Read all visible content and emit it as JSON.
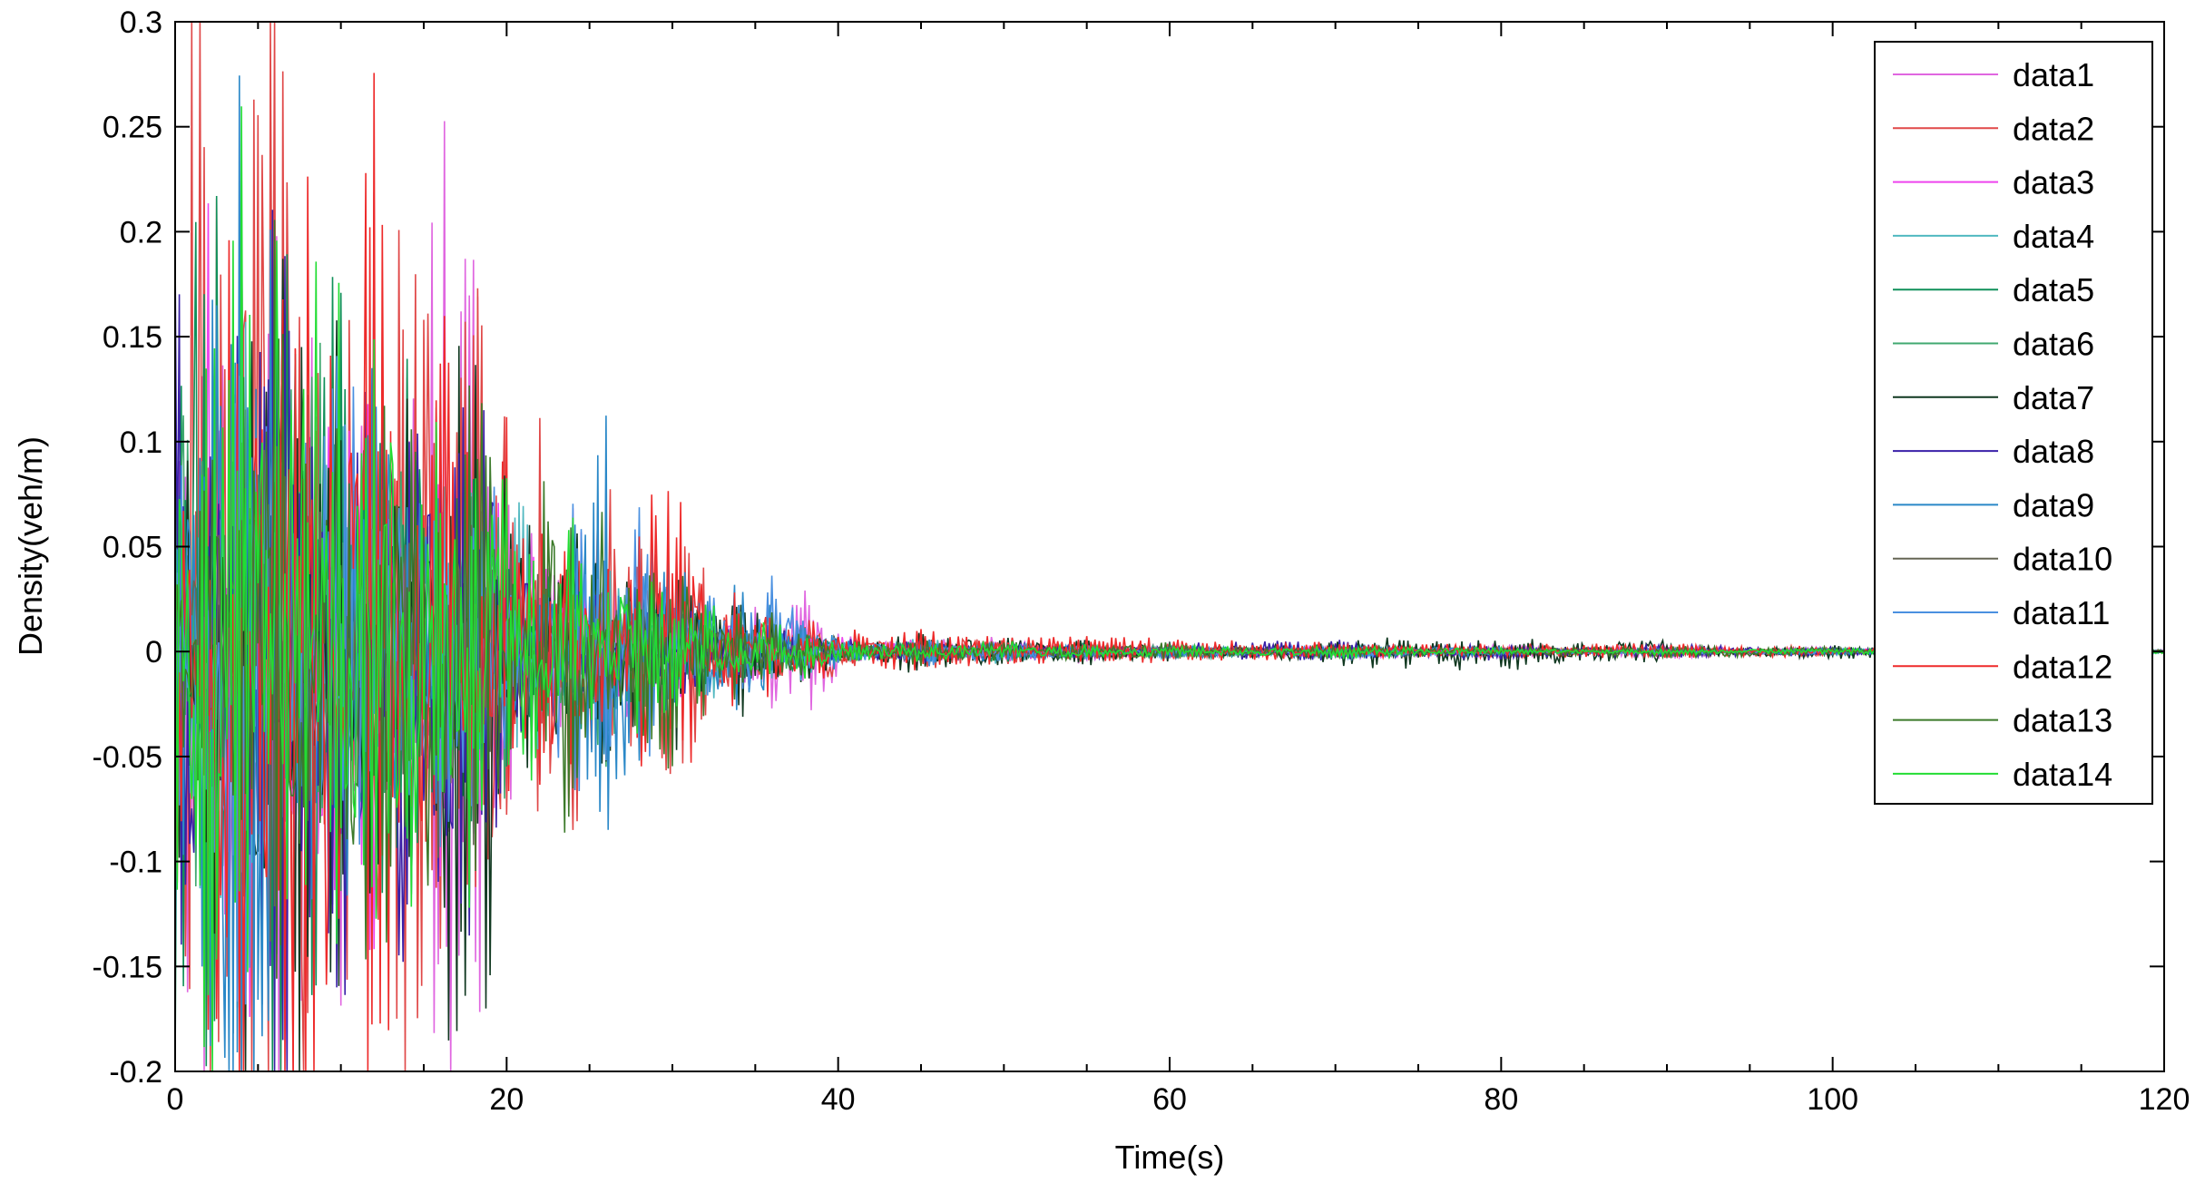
{
  "chart_data": {
    "type": "line",
    "title": "",
    "xlabel": "Time(s)",
    "ylabel": "Density(veh/m)",
    "xlim": [
      0,
      120
    ],
    "ylim": [
      -0.2,
      0.3
    ],
    "x_ticks": [
      0,
      20,
      40,
      60,
      80,
      100,
      120
    ],
    "y_ticks": [
      -0.2,
      -0.15,
      -0.1,
      -0.05,
      0,
      0.05,
      0.1,
      0.15,
      0.2,
      0.25,
      0.3
    ],
    "x_tick_labels": [
      "0",
      "20",
      "40",
      "60",
      "80",
      "100",
      "120"
    ],
    "y_tick_labels": [
      "-0.2",
      "-0.15",
      "-0.1",
      "-0.05",
      "0",
      "0.05",
      "0.1",
      "0.15",
      "0.2",
      "0.25",
      "0.3"
    ],
    "grid": false,
    "legend_position": "top-right",
    "series": [
      {
        "name": "data1",
        "color": "#e066e0",
        "x": [
          0,
          2,
          4,
          6,
          8,
          10,
          12,
          14,
          16,
          18,
          20,
          22,
          24,
          26,
          28,
          30,
          32,
          34,
          36,
          38,
          40,
          45,
          50,
          55,
          60,
          70,
          80,
          90,
          100,
          110,
          120
        ],
        "y": [
          0.02,
          -0.15,
          0.08,
          -0.17,
          0.12,
          -0.1,
          0.09,
          -0.06,
          0.14,
          0.13,
          -0.05,
          0.04,
          -0.03,
          0.03,
          -0.03,
          0.02,
          -0.02,
          0.02,
          -0.01,
          0.02,
          0.005,
          -0.005,
          0.004,
          -0.003,
          0.002,
          -0.002,
          0.002,
          -0.002,
          0.001,
          -0.001,
          0
        ]
      },
      {
        "name": "data2",
        "color": "#e04848",
        "x": [
          0,
          2,
          4,
          6,
          8,
          10,
          12,
          14,
          16,
          18,
          20,
          22,
          24,
          26,
          28,
          30,
          32,
          34,
          36,
          38,
          40,
          45,
          50,
          55,
          60,
          70,
          80,
          90,
          100,
          110,
          120
        ],
        "y": [
          0.1,
          0.19,
          -0.08,
          0.26,
          -0.12,
          0.14,
          -0.07,
          0.16,
          -0.05,
          0.11,
          -0.04,
          0.06,
          -0.05,
          0.05,
          -0.03,
          0.05,
          -0.02,
          0.01,
          -0.01,
          0.015,
          -0.004,
          0.006,
          -0.004,
          0.003,
          -0.002,
          0.002,
          -0.002,
          0.002,
          -0.001,
          0.001,
          0
        ]
      },
      {
        "name": "data3",
        "color": "#ee44ee",
        "x": [
          0,
          2,
          4,
          6,
          8,
          10,
          12,
          14,
          16,
          18,
          20,
          22,
          24,
          26,
          28,
          30,
          32,
          34,
          36,
          38,
          40,
          45,
          50,
          55,
          60,
          70,
          80,
          90,
          100,
          110,
          120
        ],
        "y": [
          -0.03,
          0.09,
          -0.14,
          0.07,
          -0.1,
          0.11,
          -0.08,
          0.06,
          -0.06,
          0.05,
          0.03,
          -0.04,
          0.04,
          -0.02,
          0.02,
          -0.02,
          0.01,
          -0.01,
          0.01,
          -0.005,
          0.004,
          -0.004,
          0.003,
          -0.002,
          0.002,
          -0.002,
          0.001,
          -0.001,
          0.001,
          -0.001,
          0
        ]
      },
      {
        "name": "data4",
        "color": "#50b8c0",
        "x": [
          0,
          2,
          4,
          6,
          8,
          10,
          12,
          14,
          16,
          18,
          20,
          22,
          24,
          26,
          28,
          30,
          32,
          34,
          36,
          38,
          40,
          45,
          50,
          55,
          60,
          70,
          80,
          90,
          100,
          110,
          120
        ],
        "y": [
          0.05,
          -0.09,
          0.12,
          -0.06,
          0.1,
          -0.08,
          0.07,
          -0.05,
          0.06,
          -0.07,
          0.04,
          0.03,
          -0.03,
          0.03,
          -0.02,
          0.02,
          -0.015,
          0.01,
          -0.01,
          0.008,
          -0.004,
          0.004,
          -0.003,
          0.002,
          -0.002,
          0.002,
          -0.001,
          0.001,
          -0.001,
          0.001,
          0
        ]
      },
      {
        "name": "data5",
        "color": "#10905a",
        "x": [
          0,
          2,
          4,
          6,
          8,
          10,
          12,
          14,
          16,
          18,
          20,
          22,
          24,
          26,
          28,
          30,
          32,
          34,
          36,
          38,
          40,
          45,
          50,
          55,
          60,
          70,
          80,
          90,
          100,
          110,
          120
        ],
        "y": [
          -0.08,
          0.16,
          -0.1,
          0.18,
          -0.12,
          0.15,
          -0.09,
          0.08,
          -0.07,
          0.05,
          -0.03,
          0.03,
          -0.03,
          0.02,
          -0.02,
          0.02,
          -0.01,
          0.01,
          -0.01,
          0.005,
          -0.003,
          0.003,
          -0.003,
          0.002,
          -0.002,
          0.001,
          -0.001,
          0.001,
          -0.001,
          0.001,
          0
        ]
      },
      {
        "name": "data6",
        "color": "#40a870",
        "x": [
          0,
          2,
          4,
          6,
          8,
          10,
          12,
          14,
          16,
          18,
          20,
          22,
          24,
          26,
          28,
          30,
          32,
          34,
          36,
          38,
          40,
          45,
          50,
          55,
          60,
          70,
          80,
          90,
          100,
          110,
          120
        ],
        "y": [
          0.07,
          -0.12,
          0.09,
          -0.08,
          0.13,
          -0.06,
          0.08,
          -0.07,
          0.05,
          -0.06,
          0.04,
          -0.03,
          0.02,
          -0.03,
          0.02,
          -0.01,
          0.01,
          -0.01,
          0.008,
          -0.006,
          0.003,
          -0.003,
          0.002,
          -0.002,
          0.002,
          -0.001,
          0.001,
          -0.001,
          0.001,
          -0.001,
          0
        ]
      },
      {
        "name": "data7",
        "color": "#103820",
        "x": [
          0,
          2,
          4,
          6,
          8,
          10,
          12,
          14,
          16,
          18,
          20,
          22,
          24,
          26,
          28,
          30,
          32,
          34,
          36,
          38,
          40,
          45,
          50,
          55,
          60,
          70,
          80,
          90,
          100,
          110,
          120
        ],
        "y": [
          -0.05,
          0.1,
          -0.13,
          0.12,
          -0.17,
          0.09,
          -0.06,
          0.07,
          -0.08,
          -0.12,
          0.02,
          -0.05,
          0.03,
          -0.04,
          0.02,
          -0.03,
          0.01,
          -0.02,
          0.01,
          -0.01,
          0.003,
          -0.006,
          0.004,
          -0.004,
          0.002,
          -0.003,
          -0.005,
          0.002,
          -0.002,
          0.001,
          0
        ]
      },
      {
        "name": "data8",
        "color": "#3a20a8",
        "x": [
          0,
          2,
          4,
          6,
          8,
          10,
          12,
          14,
          16,
          18,
          20,
          22,
          24,
          26,
          28,
          30,
          32,
          34,
          36,
          38,
          40,
          45,
          50,
          55,
          60,
          70,
          80,
          90,
          100,
          110,
          120
        ],
        "y": [
          0.11,
          -0.07,
          0.1,
          -0.16,
          0.08,
          -0.11,
          0.12,
          -0.09,
          0.06,
          -0.1,
          0.05,
          -0.03,
          0.03,
          -0.02,
          0.02,
          -0.02,
          0.01,
          -0.01,
          0.008,
          -0.005,
          0.004,
          -0.003,
          0.003,
          -0.002,
          0.002,
          0.003,
          -0.002,
          0.002,
          -0.001,
          0.001,
          0
        ]
      },
      {
        "name": "data9",
        "color": "#2a88c8",
        "x": [
          0,
          2,
          4,
          6,
          8,
          10,
          12,
          14,
          16,
          18,
          20,
          22,
          24,
          26,
          28,
          30,
          32,
          34,
          36,
          38,
          40,
          45,
          50,
          55,
          60,
          70,
          80,
          90,
          100,
          110,
          120
        ],
        "y": [
          -0.1,
          0.12,
          -0.2,
          0.1,
          -0.07,
          0.08,
          -0.1,
          0.06,
          -0.05,
          0.04,
          -0.02,
          0.02,
          -0.02,
          0.06,
          -0.03,
          0.03,
          -0.02,
          0.02,
          -0.01,
          0.01,
          -0.004,
          0.004,
          -0.003,
          0.002,
          -0.002,
          0.002,
          -0.001,
          0.001,
          -0.001,
          0.001,
          0
        ]
      },
      {
        "name": "data10",
        "color": "#666655",
        "x": [
          0,
          2,
          4,
          6,
          8,
          10,
          12,
          14,
          16,
          18,
          20,
          22,
          24,
          26,
          28,
          30,
          32,
          34,
          36,
          38,
          40,
          45,
          50,
          55,
          60,
          70,
          80,
          90,
          100,
          110,
          120
        ],
        "y": [
          0.04,
          -0.06,
          0.07,
          -0.09,
          0.05,
          -0.07,
          0.06,
          -0.04,
          0.07,
          -0.05,
          0.03,
          -0.03,
          0.02,
          -0.02,
          0.02,
          -0.015,
          0.01,
          -0.01,
          0.006,
          -0.004,
          0.003,
          -0.003,
          0.002,
          -0.002,
          0.001,
          -0.001,
          0.001,
          -0.001,
          0.001,
          -0.001,
          0
        ]
      },
      {
        "name": "data11",
        "color": "#4a90e0",
        "x": [
          0,
          2,
          4,
          6,
          8,
          10,
          12,
          14,
          16,
          18,
          20,
          22,
          24,
          26,
          28,
          30,
          32,
          34,
          36,
          38,
          40,
          45,
          50,
          55,
          60,
          70,
          80,
          90,
          100,
          110,
          120
        ],
        "y": [
          -0.06,
          0.08,
          -0.11,
          0.09,
          -0.06,
          0.1,
          -0.05,
          0.05,
          -0.06,
          0.06,
          0.02,
          -0.03,
          0.05,
          -0.02,
          0.04,
          -0.01,
          0.02,
          -0.01,
          0.02,
          -0.005,
          0.004,
          -0.004,
          0.003,
          -0.002,
          0.002,
          -0.002,
          0.001,
          -0.001,
          0.001,
          -0.001,
          0
        ]
      },
      {
        "name": "data12",
        "color": "#ee2a2a",
        "x": [
          0,
          2,
          4,
          6,
          8,
          10,
          12,
          14,
          16,
          18,
          20,
          22,
          24,
          26,
          28,
          30,
          32,
          34,
          36,
          38,
          40,
          45,
          50,
          55,
          60,
          70,
          80,
          90,
          100,
          110,
          120
        ],
        "y": [
          0.08,
          -0.09,
          0.18,
          -0.05,
          0.22,
          -0.08,
          0.16,
          -0.06,
          0.1,
          -0.04,
          0.06,
          -0.04,
          0.04,
          -0.03,
          0.03,
          0.05,
          -0.01,
          0.02,
          -0.01,
          0.01,
          0.005,
          0.006,
          0.004,
          0.004,
          0.003,
          0.002,
          0.002,
          0.002,
          0.001,
          0.001,
          0
        ]
      },
      {
        "name": "data13",
        "color": "#3c7a2a",
        "x": [
          0,
          2,
          4,
          6,
          8,
          10,
          12,
          14,
          16,
          18,
          20,
          22,
          24,
          26,
          28,
          30,
          32,
          34,
          36,
          38,
          40,
          45,
          50,
          55,
          60,
          70,
          80,
          90,
          100,
          110,
          120
        ],
        "y": [
          -0.04,
          0.06,
          -0.08,
          0.11,
          -0.09,
          0.07,
          -0.11,
          0.05,
          -0.09,
          0.08,
          -0.03,
          0.04,
          -0.06,
          0.03,
          -0.03,
          -0.03,
          0.01,
          -0.015,
          0.01,
          -0.006,
          0.003,
          -0.004,
          0.003,
          -0.003,
          0.002,
          -0.002,
          0.001,
          -0.002,
          0.001,
          -0.001,
          0
        ]
      },
      {
        "name": "data14",
        "color": "#22dd33",
        "x": [
          0,
          2,
          4,
          6,
          8,
          10,
          12,
          14,
          16,
          18,
          20,
          22,
          24,
          26,
          28,
          30,
          32,
          34,
          36,
          38,
          40,
          45,
          50,
          55,
          60,
          70,
          80,
          90,
          100,
          110,
          120
        ],
        "y": [
          0.06,
          -0.13,
          0.14,
          -0.1,
          0.17,
          -0.06,
          0.1,
          -0.08,
          0.08,
          -0.07,
          0.04,
          -0.05,
          0.04,
          -0.03,
          0.03,
          -0.02,
          0.015,
          -0.01,
          0.01,
          -0.007,
          0.004,
          -0.003,
          0.003,
          -0.002,
          0.002,
          -0.002,
          0.001,
          -0.001,
          0.001,
          -0.001,
          0
        ]
      }
    ]
  }
}
